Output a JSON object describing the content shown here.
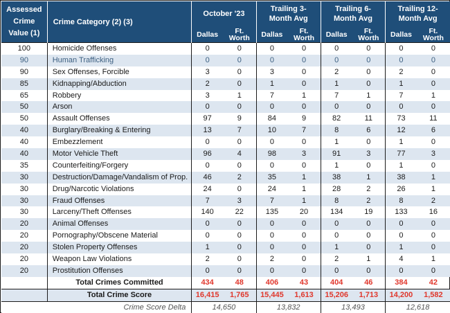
{
  "headers": {
    "value_label": "Assessed Crime Value (1)",
    "category_label": "Crime Category (2) (3)",
    "groups": [
      "October '23",
      "Trailing 3-Month Avg",
      "Trailing 6-Month Avg",
      "Trailing 12-Month Avg"
    ],
    "dallas": "Dallas",
    "ftworth": "Ft. Worth"
  },
  "rows": [
    {
      "value": "100",
      "category": "Homicide Offenses",
      "cells": [
        "0",
        "0",
        "0",
        "0",
        "0",
        "0",
        "0",
        "0"
      ]
    },
    {
      "value": "90",
      "category": "Human Trafficking",
      "cells": [
        "0",
        "0",
        "0",
        "0",
        "0",
        "0",
        "0",
        "0"
      ]
    },
    {
      "value": "90",
      "category": "Sex Offenses, Forcible",
      "cells": [
        "3",
        "0",
        "3",
        "0",
        "2",
        "0",
        "2",
        "0"
      ]
    },
    {
      "value": "85",
      "category": "Kidnapping/Abduction",
      "cells": [
        "2",
        "0",
        "1",
        "0",
        "1",
        "0",
        "1",
        "0"
      ]
    },
    {
      "value": "65",
      "category": "Robbery",
      "cells": [
        "3",
        "1",
        "7",
        "1",
        "7",
        "1",
        "7",
        "1"
      ]
    },
    {
      "value": "50",
      "category": "Arson",
      "cells": [
        "0",
        "0",
        "0",
        "0",
        "0",
        "0",
        "0",
        "0"
      ]
    },
    {
      "value": "50",
      "category": "Assault Offenses",
      "cells": [
        "97",
        "9",
        "84",
        "9",
        "82",
        "11",
        "73",
        "11"
      ]
    },
    {
      "value": "40",
      "category": "Burglary/Breaking & Entering",
      "cells": [
        "13",
        "7",
        "10",
        "7",
        "8",
        "6",
        "12",
        "6"
      ]
    },
    {
      "value": "40",
      "category": "Embezzlement",
      "cells": [
        "0",
        "0",
        "0",
        "0",
        "1",
        "0",
        "1",
        "0"
      ]
    },
    {
      "value": "40",
      "category": "Motor Vehicle Theft",
      "cells": [
        "96",
        "4",
        "98",
        "3",
        "91",
        "3",
        "77",
        "3"
      ]
    },
    {
      "value": "35",
      "category": "Counterfeiting/Forgery",
      "cells": [
        "0",
        "0",
        "0",
        "0",
        "1",
        "0",
        "1",
        "0"
      ]
    },
    {
      "value": "30",
      "category": "Destruction/Damage/Vandalism of Prop.",
      "cells": [
        "46",
        "2",
        "35",
        "1",
        "38",
        "1",
        "38",
        "1"
      ]
    },
    {
      "value": "30",
      "category": "Drug/Narcotic Violations",
      "cells": [
        "24",
        "0",
        "24",
        "1",
        "28",
        "2",
        "26",
        "1"
      ]
    },
    {
      "value": "30",
      "category": "Fraud Offenses",
      "cells": [
        "7",
        "3",
        "7",
        "1",
        "8",
        "2",
        "8",
        "2"
      ]
    },
    {
      "value": "30",
      "category": "Larceny/Theft Offenses",
      "cells": [
        "140",
        "22",
        "135",
        "20",
        "134",
        "19",
        "133",
        "16"
      ]
    },
    {
      "value": "20",
      "category": "Animal Offenses",
      "cells": [
        "0",
        "0",
        "0",
        "0",
        "0",
        "0",
        "0",
        "0"
      ]
    },
    {
      "value": "20",
      "category": "Pornography/Obscene Material",
      "cells": [
        "0",
        "0",
        "0",
        "0",
        "0",
        "0",
        "0",
        "0"
      ]
    },
    {
      "value": "20",
      "category": "Stolen Property Offenses",
      "cells": [
        "1",
        "0",
        "0",
        "0",
        "1",
        "0",
        "1",
        "0"
      ]
    },
    {
      "value": "20",
      "category": "Weapon Law Violations",
      "cells": [
        "2",
        "0",
        "2",
        "0",
        "2",
        "1",
        "4",
        "1"
      ]
    },
    {
      "value": "20",
      "category": "Prostitution Offenses",
      "cells": [
        "0",
        "0",
        "0",
        "0",
        "0",
        "0",
        "0",
        "0"
      ]
    }
  ],
  "totals": {
    "committed_label": "Total Crimes Committed",
    "committed": [
      "434",
      "48",
      "406",
      "43",
      "404",
      "46",
      "384",
      "42"
    ],
    "score_label": "Total Crime Score",
    "score": [
      "16,415",
      "1,765",
      "15,445",
      "1,613",
      "15,206",
      "1,713",
      "14,200",
      "1,582"
    ],
    "delta_label": "Crime Score Delta",
    "delta": [
      "14,650",
      "13,832",
      "13,493",
      "12,618"
    ]
  },
  "colors": {
    "header_bg": "#1f4e79",
    "alt_row_bg": "#dde6f0",
    "total_red": "#e0372c"
  }
}
